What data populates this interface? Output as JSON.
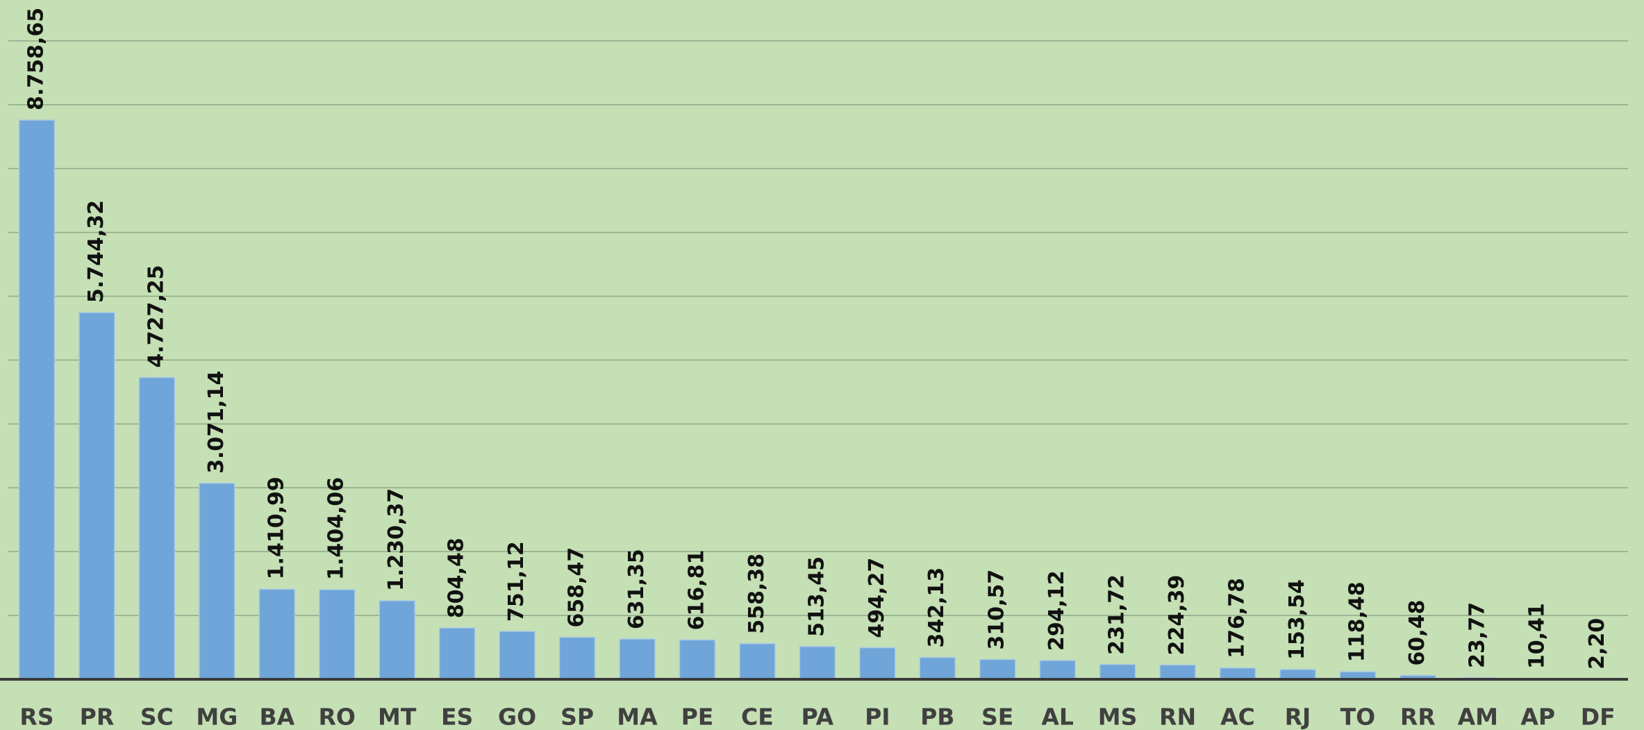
{
  "chart_data": {
    "type": "bar",
    "categories": [
      "RS",
      "PR",
      "SC",
      "MG",
      "BA",
      "RO",
      "MT",
      "ES",
      "GO",
      "SP",
      "MA",
      "PE",
      "CE",
      "PA",
      "PI",
      "PB",
      "SE",
      "AL",
      "MS",
      "RN",
      "AC",
      "RJ",
      "TO",
      "RR",
      "AM",
      "AP",
      "DF"
    ],
    "values": [
      8758.65,
      5744.32,
      4727.25,
      3071.14,
      1410.99,
      1404.06,
      1230.37,
      804.48,
      751.12,
      658.47,
      631.35,
      616.81,
      558.38,
      513.45,
      494.27,
      342.13,
      310.57,
      294.12,
      231.72,
      224.39,
      176.78,
      153.54,
      118.48,
      60.48,
      23.77,
      10.41,
      2.2
    ],
    "value_labels": [
      "8.758,65",
      "5.744,32",
      "4.727,25",
      "3.071,14",
      "1.410,99",
      "1.404,06",
      "1.230,37",
      "804,48",
      "751,12",
      "658,47",
      "631,35",
      "616,81",
      "558,38",
      "513,45",
      "494,27",
      "342,13",
      "310,57",
      "294,12",
      "231,72",
      "224,39",
      "176,78",
      "153,54",
      "118,48",
      "60,48",
      "23,77",
      "10,41",
      "2,20"
    ],
    "color": "#6fa5d8",
    "ylim": [
      0,
      10640
    ],
    "yticks": [
      0,
      1000,
      2000,
      3000,
      4000,
      5000,
      6000,
      7000,
      8000,
      9000,
      10000
    ],
    "grid": true
  }
}
